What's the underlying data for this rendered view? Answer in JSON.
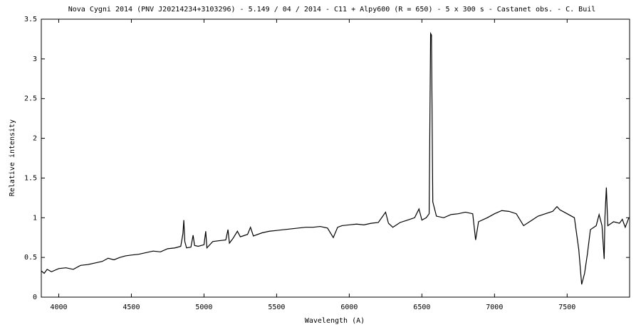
{
  "chart_data": {
    "type": "line",
    "title": "Nova Cygni 2014 (PNV J20214234+3103296) - 5.149 / 04 / 2014 - C11 + Alpy600 (R = 650) - 5 x 300 s - Castanet obs. - C. Buil",
    "x_label": "Wavelength (A)",
    "y_label": "Relative intensity",
    "color": "#000000",
    "xlim": [
      3880,
      7930
    ],
    "ylim": [
      0,
      3.5
    ],
    "xticks": [
      4000,
      4500,
      5000,
      5500,
      6000,
      6500,
      7000,
      7500
    ],
    "yticks": [
      0,
      0.5,
      1,
      1.5,
      2,
      2.5,
      3,
      3.5
    ],
    "x": [
      3880,
      3900,
      3920,
      3950,
      4000,
      4050,
      4100,
      4150,
      4200,
      4250,
      4300,
      4340,
      4380,
      4420,
      4460,
      4500,
      4550,
      4600,
      4650,
      4700,
      4750,
      4800,
      4840,
      4855,
      4861,
      4868,
      4880,
      4910,
      4925,
      4935,
      4960,
      5000,
      5012,
      5020,
      5060,
      5100,
      5150,
      5165,
      5175,
      5200,
      5230,
      5250,
      5300,
      5320,
      5340,
      5400,
      5450,
      5500,
      5550,
      5600,
      5650,
      5700,
      5750,
      5800,
      5850,
      5890,
      5920,
      5950,
      6000,
      6050,
      6100,
      6150,
      6200,
      6250,
      6270,
      6300,
      6350,
      6400,
      6450,
      6480,
      6500,
      6530,
      6550,
      6560,
      6566,
      6575,
      6600,
      6650,
      6700,
      6750,
      6800,
      6850,
      6870,
      6890,
      6950,
      7000,
      7050,
      7100,
      7150,
      7200,
      7250,
      7300,
      7350,
      7400,
      7430,
      7450,
      7500,
      7550,
      7580,
      7600,
      7620,
      7640,
      7660,
      7700,
      7720,
      7740,
      7755,
      7760,
      7770,
      7780,
      7820,
      7860,
      7880,
      7900,
      7925
    ],
    "values": [
      0.33,
      0.3,
      0.35,
      0.32,
      0.36,
      0.37,
      0.35,
      0.4,
      0.41,
      0.43,
      0.45,
      0.49,
      0.47,
      0.5,
      0.52,
      0.53,
      0.54,
      0.56,
      0.58,
      0.57,
      0.61,
      0.62,
      0.64,
      0.8,
      0.97,
      0.7,
      0.62,
      0.63,
      0.78,
      0.65,
      0.64,
      0.66,
      0.83,
      0.62,
      0.7,
      0.71,
      0.72,
      0.85,
      0.68,
      0.74,
      0.83,
      0.76,
      0.79,
      0.88,
      0.77,
      0.81,
      0.83,
      0.84,
      0.85,
      0.86,
      0.87,
      0.88,
      0.88,
      0.89,
      0.87,
      0.75,
      0.88,
      0.9,
      0.91,
      0.92,
      0.91,
      0.93,
      0.94,
      1.07,
      0.93,
      0.88,
      0.94,
      0.97,
      1.0,
      1.11,
      0.97,
      1.0,
      1.05,
      3.32,
      3.3,
      1.2,
      1.02,
      1.0,
      1.04,
      1.05,
      1.07,
      1.05,
      0.72,
      0.95,
      1.0,
      1.05,
      1.09,
      1.08,
      1.05,
      0.9,
      0.96,
      1.02,
      1.05,
      1.08,
      1.14,
      1.1,
      1.05,
      1.0,
      0.6,
      0.16,
      0.3,
      0.55,
      0.85,
      0.9,
      1.04,
      0.9,
      0.48,
      1.0,
      1.38,
      0.9,
      0.95,
      0.93,
      0.98,
      0.88,
      1.0
    ]
  }
}
